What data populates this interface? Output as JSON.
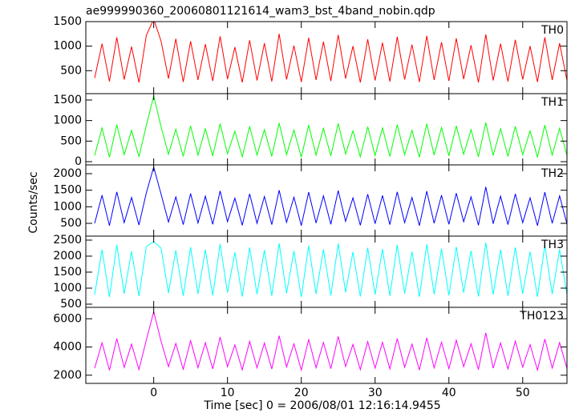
{
  "chart_data": [
    {
      "type": "line",
      "title": "ae999990360_20060801121614_wam3_bst_4band_nobin.qdp",
      "label": "TH0",
      "color": "#ff0000",
      "xlim": [
        -9.2,
        56
      ],
      "ylim": [
        32,
        1500
      ],
      "yticks": [
        500,
        1000,
        1500
      ],
      "x": [
        -8,
        -7,
        -6,
        -5,
        -4,
        -3,
        -2,
        -1,
        0,
        1,
        2,
        3,
        4,
        5,
        6,
        7,
        8,
        9,
        10,
        11,
        12,
        13,
        14,
        15,
        16,
        17,
        18,
        19,
        20,
        21,
        22,
        23,
        24,
        25,
        26,
        27,
        28,
        29,
        30,
        31,
        32,
        33,
        34,
        35,
        36,
        37,
        38,
        39,
        40,
        41,
        42,
        43,
        44,
        45,
        46,
        47,
        48,
        49,
        50,
        51,
        52,
        53,
        54,
        55,
        56
      ],
      "values": [
        350,
        1050,
        280,
        1180,
        320,
        990,
        260,
        1220,
        1550,
        1100,
        340,
        1150,
        270,
        1100,
        310,
        1040,
        290,
        1200,
        330,
        980,
        260,
        1120,
        300,
        1060,
        280,
        1250,
        320,
        1010,
        270,
        1170,
        310,
        1090,
        290,
        1230,
        340,
        1000,
        260,
        1140,
        300,
        1070,
        280,
        1190,
        320,
        1030,
        270,
        1210,
        310,
        1080,
        290,
        1160,
        330,
        1020,
        260,
        1240,
        300,
        1050,
        280,
        1130,
        320,
        1000,
        270,
        1180,
        310,
        1060,
        300
      ]
    },
    {
      "type": "line",
      "label": "TH1",
      "color": "#00ff00",
      "xlim": [
        -9.2,
        56
      ],
      "ylim": [
        -78,
        1655
      ],
      "yticks": [
        0,
        500,
        1000,
        1500
      ],
      "x": [
        -8,
        -7,
        -6,
        -5,
        -4,
        -3,
        -2,
        -1,
        0,
        1,
        2,
        3,
        4,
        5,
        6,
        7,
        8,
        9,
        10,
        11,
        12,
        13,
        14,
        15,
        16,
        17,
        18,
        19,
        20,
        21,
        22,
        23,
        24,
        25,
        26,
        27,
        28,
        29,
        30,
        31,
        32,
        33,
        34,
        35,
        36,
        37,
        38,
        39,
        40,
        41,
        42,
        43,
        44,
        45,
        46,
        47,
        48,
        49,
        50,
        51,
        52,
        53,
        54,
        55,
        56
      ],
      "values": [
        150,
        820,
        110,
        900,
        170,
        760,
        120,
        880,
        1600,
        850,
        180,
        790,
        130,
        870,
        160,
        800,
        140,
        920,
        190,
        740,
        120,
        860,
        160,
        780,
        130,
        940,
        170,
        770,
        110,
        890,
        160,
        810,
        140,
        930,
        190,
        750,
        120,
        850,
        150,
        820,
        130,
        900,
        170,
        760,
        110,
        920,
        160,
        830,
        140,
        870,
        180,
        780,
        120,
        950,
        150,
        800,
        130,
        860,
        170,
        750,
        110,
        890,
        160,
        810,
        150
      ]
    },
    {
      "type": "line",
      "label": "TH2",
      "color": "#0000ff",
      "y_label": "Counts/sec",
      "xlim": [
        -9.2,
        56
      ],
      "ylim": [
        114,
        2265
      ],
      "yticks": [
        500,
        1000,
        1500,
        2000
      ],
      "x": [
        -8,
        -7,
        -6,
        -5,
        -4,
        -3,
        -2,
        -1,
        0,
        1,
        2,
        3,
        4,
        5,
        6,
        7,
        8,
        9,
        10,
        11,
        12,
        13,
        14,
        15,
        16,
        17,
        18,
        19,
        20,
        21,
        22,
        23,
        24,
        25,
        26,
        27,
        28,
        29,
        30,
        31,
        32,
        33,
        34,
        35,
        36,
        37,
        38,
        39,
        40,
        41,
        42,
        43,
        44,
        45,
        46,
        47,
        48,
        49,
        50,
        51,
        52,
        53,
        54,
        55,
        56
      ],
      "values": [
        500,
        1350,
        430,
        1450,
        520,
        1280,
        450,
        1420,
        2200,
        1380,
        540,
        1300,
        460,
        1400,
        510,
        1320,
        470,
        1480,
        550,
        1260,
        440,
        1390,
        500,
        1310,
        460,
        1500,
        530,
        1290,
        430,
        1440,
        510,
        1330,
        470,
        1490,
        560,
        1270,
        440,
        1380,
        490,
        1340,
        460,
        1450,
        520,
        1280,
        430,
        1470,
        500,
        1350,
        470,
        1410,
        550,
        1300,
        440,
        1600,
        490,
        1320,
        460,
        1390,
        520,
        1270,
        430,
        1440,
        500,
        1330,
        480
      ]
    },
    {
      "type": "line",
      "label": "TH3",
      "color": "#00ffff",
      "xlim": [
        -9.2,
        56
      ],
      "ylim": [
        400,
        2625
      ],
      "yticks": [
        500,
        1000,
        1500,
        2000,
        2500
      ],
      "x": [
        -8,
        -7,
        -6,
        -5,
        -4,
        -3,
        -2,
        -1,
        0,
        1,
        2,
        3,
        4,
        5,
        6,
        7,
        8,
        9,
        10,
        11,
        12,
        13,
        14,
        15,
        16,
        17,
        18,
        19,
        20,
        21,
        22,
        23,
        24,
        25,
        26,
        27,
        28,
        29,
        30,
        31,
        32,
        33,
        34,
        35,
        36,
        37,
        38,
        39,
        40,
        41,
        42,
        43,
        44,
        45,
        46,
        47,
        48,
        49,
        50,
        51,
        52,
        53,
        54,
        55,
        56
      ],
      "values": [
        800,
        2200,
        720,
        2350,
        830,
        2150,
        750,
        2300,
        2450,
        2250,
        850,
        2180,
        760,
        2280,
        820,
        2200,
        770,
        2380,
        860,
        2120,
        740,
        2270,
        810,
        2190,
        760,
        2400,
        840,
        2160,
        720,
        2330,
        820,
        2210,
        770,
        2390,
        870,
        2130,
        740,
        2260,
        800,
        2220,
        760,
        2350,
        830,
        2140,
        730,
        2370,
        810,
        2230,
        770,
        2290,
        860,
        2170,
        740,
        2420,
        800,
        2200,
        760,
        2270,
        830,
        2140,
        730,
        2340,
        810,
        2210,
        790
      ]
    },
    {
      "type": "line",
      "label": "TH0123",
      "color": "#ff00ff",
      "x_label": "Time [sec] 0 = 2006/08/01 12:16:14.9455",
      "xlim": [
        -9.2,
        56
      ],
      "xticks": [
        0,
        10,
        20,
        30,
        40,
        50
      ],
      "ylim": [
        1420,
        6810
      ],
      "yticks": [
        2000,
        4000,
        6000
      ],
      "x": [
        -8,
        -7,
        -6,
        -5,
        -4,
        -3,
        -2,
        -1,
        0,
        1,
        2,
        3,
        4,
        5,
        6,
        7,
        8,
        9,
        10,
        11,
        12,
        13,
        14,
        15,
        16,
        17,
        18,
        19,
        20,
        21,
        22,
        23,
        24,
        25,
        26,
        27,
        28,
        29,
        30,
        31,
        32,
        33,
        34,
        35,
        36,
        37,
        38,
        39,
        40,
        41,
        42,
        43,
        44,
        45,
        46,
        47,
        48,
        49,
        50,
        51,
        52,
        53,
        54,
        55,
        56
      ],
      "values": [
        2500,
        4300,
        2350,
        4600,
        2550,
        4200,
        2400,
        4500,
        6500,
        4400,
        2600,
        4250,
        2420,
        4450,
        2530,
        4300,
        2450,
        4700,
        2600,
        4150,
        2380,
        4400,
        2520,
        4280,
        2440,
        4800,
        2580,
        4220,
        2360,
        4550,
        2530,
        4320,
        2460,
        4750,
        2620,
        4180,
        2390,
        4380,
        2500,
        4330,
        2450,
        4600,
        2560,
        4200,
        2370,
        4650,
        2520,
        4340,
        2460,
        4480,
        2610,
        4230,
        2400,
        5000,
        2500,
        4290,
        2440,
        4410,
        2570,
        4170,
        2360,
        4560,
        2510,
        4310,
        2480
      ]
    }
  ]
}
